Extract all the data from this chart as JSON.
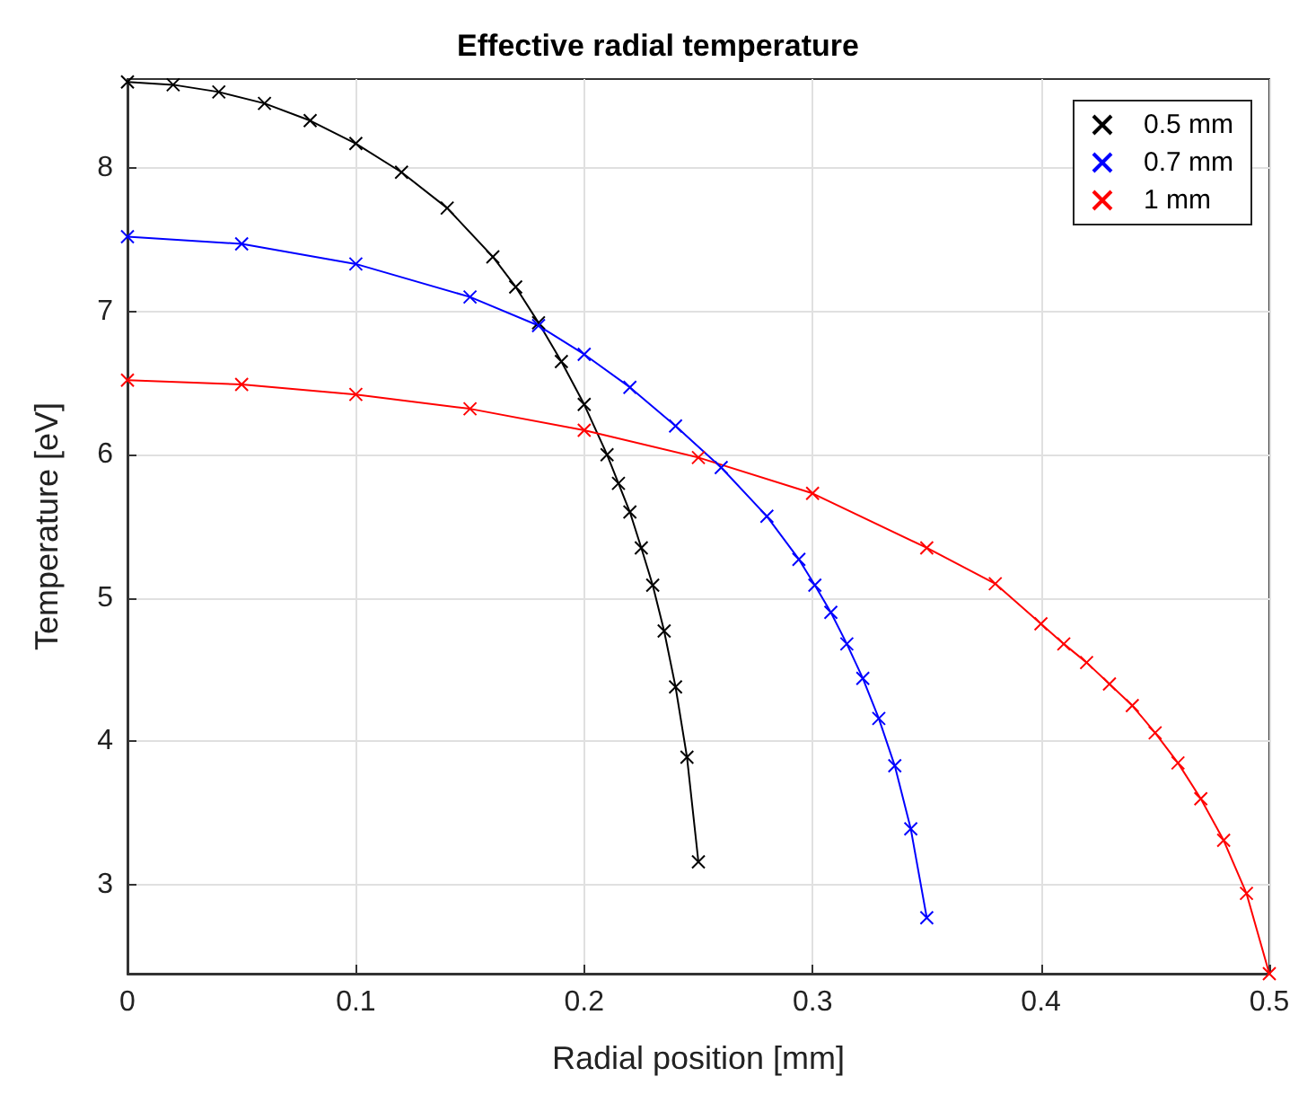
{
  "chart_data": {
    "type": "line",
    "title": "Effective radial temperature",
    "xlabel": "Radial position [mm]",
    "ylabel": "Temperature [eV]",
    "series": [
      {
        "name": "0.5 mm",
        "color": "#000000",
        "x": [
          0,
          0.02,
          0.04,
          0.06,
          0.08,
          0.1,
          0.12,
          0.14,
          0.16,
          0.17,
          0.18,
          0.19,
          0.2,
          0.21,
          0.215,
          0.22,
          0.225,
          0.23,
          0.235,
          0.24,
          0.245,
          0.25
        ],
        "values": [
          8.6,
          8.58,
          8.53,
          8.45,
          8.33,
          8.17,
          7.97,
          7.72,
          7.38,
          7.17,
          6.92,
          6.65,
          6.35,
          6.0,
          5.8,
          5.6,
          5.35,
          5.09,
          4.77,
          4.38,
          3.89,
          3.16
        ]
      },
      {
        "name": "0.7 mm",
        "color": "#0000ff",
        "x": [
          0,
          0.05,
          0.1,
          0.15,
          0.18,
          0.2,
          0.22,
          0.24,
          0.26,
          0.28,
          0.294,
          0.301,
          0.308,
          0.315,
          0.322,
          0.329,
          0.336,
          0.343,
          0.35
        ],
        "values": [
          7.52,
          7.47,
          7.33,
          7.1,
          6.9,
          6.7,
          6.47,
          6.2,
          5.91,
          5.57,
          5.27,
          5.09,
          4.9,
          4.68,
          4.44,
          4.16,
          3.83,
          3.39,
          2.77
        ]
      },
      {
        "name": "1 mm",
        "color": "#ff0000",
        "x": [
          0,
          0.05,
          0.1,
          0.15,
          0.2,
          0.25,
          0.3,
          0.35,
          0.38,
          0.4,
          0.41,
          0.42,
          0.43,
          0.44,
          0.45,
          0.46,
          0.47,
          0.48,
          0.49,
          0.5
        ],
        "values": [
          6.52,
          6.49,
          6.42,
          6.32,
          6.17,
          5.98,
          5.73,
          5.35,
          5.1,
          4.82,
          4.68,
          4.55,
          4.4,
          4.25,
          4.06,
          3.85,
          3.6,
          3.31,
          2.94,
          2.38
        ]
      }
    ],
    "xlim": [
      0,
      0.5
    ],
    "xticks": [
      0,
      0.1,
      0.2,
      0.3,
      0.4,
      0.5
    ],
    "ylim": [
      2.38,
      8.62
    ],
    "yticks": [
      3,
      4,
      5,
      6,
      7,
      8
    ],
    "grid": true,
    "legend": "top right",
    "marker": "cross",
    "line_style": "solid"
  }
}
